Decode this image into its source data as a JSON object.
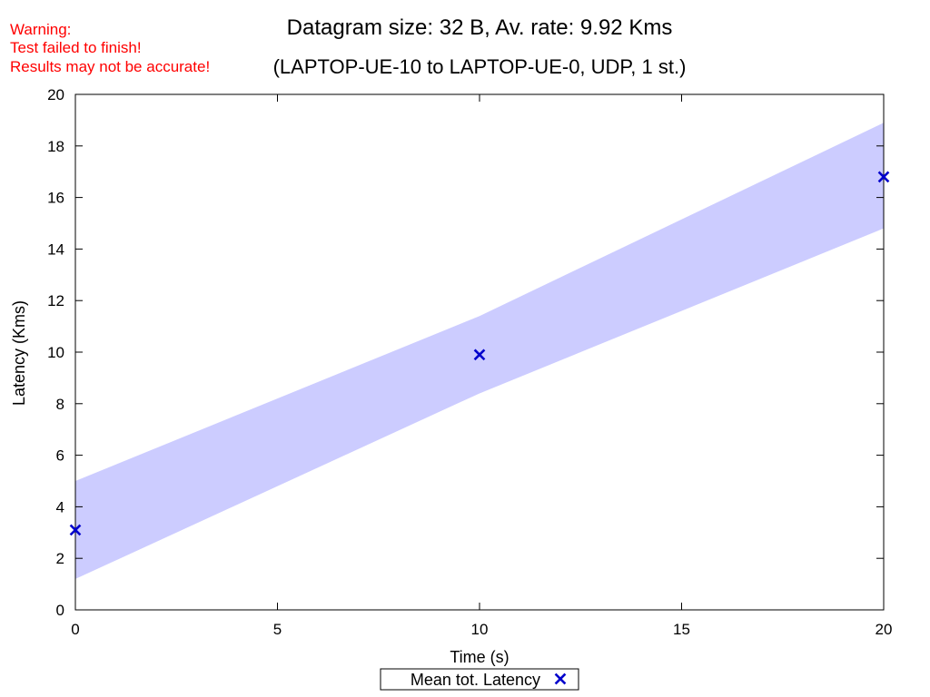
{
  "warning": {
    "lines": [
      "Warning:",
      "Test failed to finish!",
      "Results may not be accurate!"
    ],
    "color": "#ff0000"
  },
  "chart_data": {
    "type": "line",
    "title": "Datagram size: 32 B, Av. rate: 9.92 Kms",
    "subtitle": "(LAPTOP-UE-10 to LAPTOP-UE-0, UDP, 1 st.)",
    "xlabel": "Time (s)",
    "ylabel": "Latency (Kms)",
    "xlim": [
      0,
      20
    ],
    "ylim": [
      0,
      20
    ],
    "xticks": [
      0,
      5,
      10,
      15,
      20
    ],
    "yticks": [
      0,
      2,
      4,
      6,
      8,
      10,
      12,
      14,
      16,
      18,
      20
    ],
    "grid": false,
    "legend_position": "bottom-center",
    "series": [
      {
        "name": "Mean tot. Latency",
        "marker": "x",
        "color": "#0000cc",
        "x": [
          0,
          10,
          20
        ],
        "y": [
          3.1,
          9.9,
          16.8
        ]
      }
    ],
    "band": {
      "color": "#ccccff",
      "x": [
        0,
        10,
        20
      ],
      "lower": [
        1.2,
        8.4,
        14.8
      ],
      "upper": [
        5.0,
        11.4,
        18.9
      ]
    }
  }
}
